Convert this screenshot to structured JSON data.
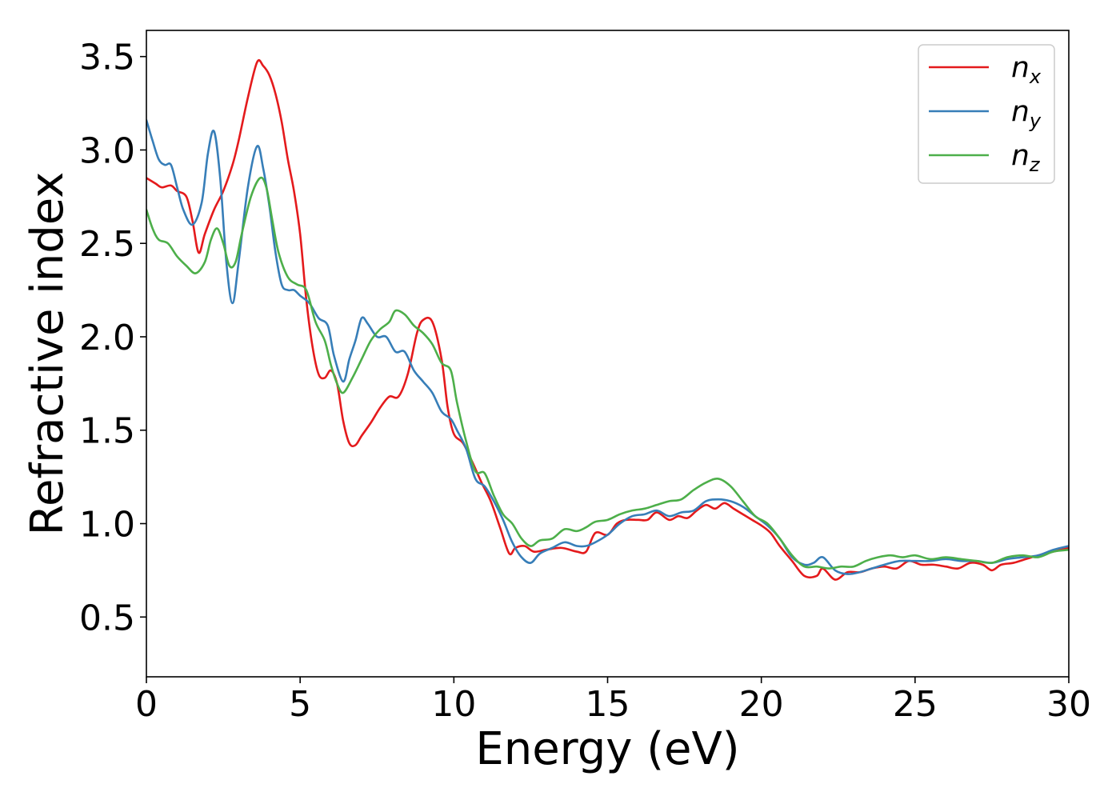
{
  "chart_data": {
    "type": "line",
    "title": "",
    "xlabel": "Energy (eV)",
    "ylabel": "Refractive index",
    "xlim": [
      0,
      30
    ],
    "ylim": [
      0.18,
      3.64
    ],
    "xticks": [
      0,
      5,
      10,
      15,
      20,
      25,
      30
    ],
    "xtick_labels": [
      "0",
      "5",
      "10",
      "15",
      "20",
      "25",
      "30"
    ],
    "yticks": [
      0.5,
      1.0,
      1.5,
      2.0,
      2.5,
      3.0,
      3.5
    ],
    "ytick_labels": [
      "0.5",
      "1.0",
      "1.5",
      "2.0",
      "2.5",
      "3.0",
      "3.5"
    ],
    "grid": false,
    "legend_position": "top-right",
    "series": [
      {
        "name": "n",
        "subscript": "x",
        "color": "#e41a1c",
        "points": [
          [
            0,
            2.85
          ],
          [
            0.3,
            2.82
          ],
          [
            0.5,
            2.8
          ],
          [
            0.8,
            2.81
          ],
          [
            1.0,
            2.78
          ],
          [
            1.3,
            2.75
          ],
          [
            1.5,
            2.62
          ],
          [
            1.7,
            2.45
          ],
          [
            1.9,
            2.55
          ],
          [
            2.2,
            2.68
          ],
          [
            2.5,
            2.78
          ],
          [
            2.8,
            2.92
          ],
          [
            3.0,
            3.05
          ],
          [
            3.3,
            3.28
          ],
          [
            3.6,
            3.47
          ],
          [
            3.8,
            3.45
          ],
          [
            4.0,
            3.4
          ],
          [
            4.2,
            3.3
          ],
          [
            4.4,
            3.15
          ],
          [
            4.6,
            2.95
          ],
          [
            4.8,
            2.78
          ],
          [
            5.0,
            2.55
          ],
          [
            5.2,
            2.2
          ],
          [
            5.4,
            1.95
          ],
          [
            5.6,
            1.8
          ],
          [
            5.8,
            1.78
          ],
          [
            6.0,
            1.82
          ],
          [
            6.2,
            1.75
          ],
          [
            6.4,
            1.55
          ],
          [
            6.6,
            1.43
          ],
          [
            6.8,
            1.42
          ],
          [
            7.0,
            1.47
          ],
          [
            7.3,
            1.54
          ],
          [
            7.6,
            1.62
          ],
          [
            7.9,
            1.68
          ],
          [
            8.2,
            1.68
          ],
          [
            8.5,
            1.8
          ],
          [
            8.8,
            2.02
          ],
          [
            9.0,
            2.09
          ],
          [
            9.3,
            2.08
          ],
          [
            9.6,
            1.88
          ],
          [
            9.8,
            1.62
          ],
          [
            10.0,
            1.48
          ],
          [
            10.3,
            1.43
          ],
          [
            10.6,
            1.33
          ],
          [
            10.9,
            1.22
          ],
          [
            11.2,
            1.12
          ],
          [
            11.5,
            0.98
          ],
          [
            11.8,
            0.84
          ],
          [
            12.0,
            0.87
          ],
          [
            12.3,
            0.88
          ],
          [
            12.6,
            0.85
          ],
          [
            13.0,
            0.86
          ],
          [
            13.5,
            0.87
          ],
          [
            14.0,
            0.85
          ],
          [
            14.3,
            0.85
          ],
          [
            14.6,
            0.95
          ],
          [
            15.0,
            0.94
          ],
          [
            15.3,
            1.0
          ],
          [
            15.6,
            1.02
          ],
          [
            16.0,
            1.02
          ],
          [
            16.3,
            1.02
          ],
          [
            16.6,
            1.06
          ],
          [
            17.0,
            1.02
          ],
          [
            17.3,
            1.04
          ],
          [
            17.6,
            1.03
          ],
          [
            17.9,
            1.07
          ],
          [
            18.2,
            1.1
          ],
          [
            18.5,
            1.08
          ],
          [
            18.8,
            1.11
          ],
          [
            19.1,
            1.08
          ],
          [
            19.4,
            1.05
          ],
          [
            19.7,
            1.02
          ],
          [
            20.0,
            0.99
          ],
          [
            20.3,
            0.95
          ],
          [
            20.6,
            0.88
          ],
          [
            21.0,
            0.8
          ],
          [
            21.4,
            0.72
          ],
          [
            21.8,
            0.72
          ],
          [
            22.0,
            0.76
          ],
          [
            22.4,
            0.7
          ],
          [
            22.8,
            0.74
          ],
          [
            23.2,
            0.74
          ],
          [
            23.6,
            0.76
          ],
          [
            24.0,
            0.77
          ],
          [
            24.4,
            0.76
          ],
          [
            24.8,
            0.8
          ],
          [
            25.2,
            0.78
          ],
          [
            25.6,
            0.78
          ],
          [
            26.0,
            0.77
          ],
          [
            26.4,
            0.76
          ],
          [
            26.8,
            0.79
          ],
          [
            27.2,
            0.78
          ],
          [
            27.5,
            0.75
          ],
          [
            27.8,
            0.78
          ],
          [
            28.2,
            0.79
          ],
          [
            28.6,
            0.81
          ],
          [
            29.0,
            0.83
          ],
          [
            29.5,
            0.85
          ],
          [
            30.0,
            0.87
          ]
        ]
      },
      {
        "name": "n",
        "subscript": "y",
        "color": "#377eb8",
        "points": [
          [
            0,
            3.16
          ],
          [
            0.2,
            3.05
          ],
          [
            0.4,
            2.95
          ],
          [
            0.6,
            2.92
          ],
          [
            0.8,
            2.92
          ],
          [
            1.0,
            2.8
          ],
          [
            1.2,
            2.68
          ],
          [
            1.5,
            2.6
          ],
          [
            1.8,
            2.72
          ],
          [
            2.0,
            2.98
          ],
          [
            2.2,
            3.1
          ],
          [
            2.4,
            2.85
          ],
          [
            2.6,
            2.4
          ],
          [
            2.8,
            2.18
          ],
          [
            3.0,
            2.4
          ],
          [
            3.3,
            2.8
          ],
          [
            3.6,
            3.02
          ],
          [
            3.8,
            2.9
          ],
          [
            4.0,
            2.7
          ],
          [
            4.2,
            2.45
          ],
          [
            4.4,
            2.28
          ],
          [
            4.6,
            2.25
          ],
          [
            4.8,
            2.25
          ],
          [
            5.0,
            2.22
          ],
          [
            5.3,
            2.18
          ],
          [
            5.6,
            2.1
          ],
          [
            5.9,
            2.06
          ],
          [
            6.1,
            1.9
          ],
          [
            6.4,
            1.76
          ],
          [
            6.6,
            1.88
          ],
          [
            6.8,
            1.98
          ],
          [
            7.0,
            2.1
          ],
          [
            7.2,
            2.07
          ],
          [
            7.5,
            2.0
          ],
          [
            7.8,
            2.0
          ],
          [
            8.1,
            1.92
          ],
          [
            8.4,
            1.92
          ],
          [
            8.7,
            1.82
          ],
          [
            9.0,
            1.76
          ],
          [
            9.3,
            1.7
          ],
          [
            9.6,
            1.6
          ],
          [
            9.9,
            1.56
          ],
          [
            10.1,
            1.5
          ],
          [
            10.4,
            1.4
          ],
          [
            10.7,
            1.24
          ],
          [
            11.0,
            1.2
          ],
          [
            11.3,
            1.12
          ],
          [
            11.6,
            1.02
          ],
          [
            11.9,
            0.9
          ],
          [
            12.2,
            0.82
          ],
          [
            12.5,
            0.79
          ],
          [
            12.8,
            0.84
          ],
          [
            13.2,
            0.87
          ],
          [
            13.6,
            0.9
          ],
          [
            14.0,
            0.88
          ],
          [
            14.3,
            0.88
          ],
          [
            14.6,
            0.9
          ],
          [
            15.0,
            0.94
          ],
          [
            15.4,
            1.0
          ],
          [
            15.8,
            1.04
          ],
          [
            16.2,
            1.05
          ],
          [
            16.6,
            1.07
          ],
          [
            17.0,
            1.04
          ],
          [
            17.4,
            1.06
          ],
          [
            17.8,
            1.07
          ],
          [
            18.2,
            1.12
          ],
          [
            18.6,
            1.13
          ],
          [
            19.0,
            1.12
          ],
          [
            19.4,
            1.09
          ],
          [
            19.8,
            1.04
          ],
          [
            20.2,
            0.99
          ],
          [
            20.6,
            0.92
          ],
          [
            21.0,
            0.82
          ],
          [
            21.4,
            0.78
          ],
          [
            21.7,
            0.79
          ],
          [
            22.0,
            0.82
          ],
          [
            22.4,
            0.75
          ],
          [
            22.8,
            0.73
          ],
          [
            23.2,
            0.74
          ],
          [
            23.6,
            0.76
          ],
          [
            24.0,
            0.78
          ],
          [
            24.5,
            0.8
          ],
          [
            25.0,
            0.8
          ],
          [
            25.5,
            0.8
          ],
          [
            26.0,
            0.81
          ],
          [
            26.5,
            0.8
          ],
          [
            27.0,
            0.8
          ],
          [
            27.5,
            0.79
          ],
          [
            28.0,
            0.81
          ],
          [
            28.5,
            0.82
          ],
          [
            29.0,
            0.83
          ],
          [
            29.5,
            0.86
          ],
          [
            30.0,
            0.88
          ]
        ]
      },
      {
        "name": "n",
        "subscript": "z",
        "color": "#4daf4a",
        "points": [
          [
            0,
            2.68
          ],
          [
            0.2,
            2.58
          ],
          [
            0.4,
            2.52
          ],
          [
            0.7,
            2.5
          ],
          [
            1.0,
            2.43
          ],
          [
            1.3,
            2.38
          ],
          [
            1.6,
            2.34
          ],
          [
            1.9,
            2.4
          ],
          [
            2.1,
            2.52
          ],
          [
            2.3,
            2.58
          ],
          [
            2.5,
            2.5
          ],
          [
            2.7,
            2.38
          ],
          [
            2.9,
            2.4
          ],
          [
            3.1,
            2.55
          ],
          [
            3.4,
            2.75
          ],
          [
            3.7,
            2.85
          ],
          [
            3.9,
            2.8
          ],
          [
            4.1,
            2.62
          ],
          [
            4.3,
            2.45
          ],
          [
            4.6,
            2.32
          ],
          [
            4.9,
            2.28
          ],
          [
            5.2,
            2.25
          ],
          [
            5.5,
            2.08
          ],
          [
            5.8,
            1.98
          ],
          [
            6.0,
            1.85
          ],
          [
            6.2,
            1.75
          ],
          [
            6.4,
            1.7
          ],
          [
            6.7,
            1.78
          ],
          [
            7.0,
            1.88
          ],
          [
            7.3,
            1.98
          ],
          [
            7.6,
            2.04
          ],
          [
            7.9,
            2.08
          ],
          [
            8.1,
            2.14
          ],
          [
            8.4,
            2.12
          ],
          [
            8.7,
            2.06
          ],
          [
            9.0,
            2.02
          ],
          [
            9.3,
            1.96
          ],
          [
            9.6,
            1.86
          ],
          [
            9.9,
            1.82
          ],
          [
            10.1,
            1.65
          ],
          [
            10.4,
            1.44
          ],
          [
            10.7,
            1.28
          ],
          [
            11.0,
            1.27
          ],
          [
            11.3,
            1.15
          ],
          [
            11.6,
            1.05
          ],
          [
            11.9,
            1.0
          ],
          [
            12.2,
            0.92
          ],
          [
            12.5,
            0.88
          ],
          [
            12.8,
            0.91
          ],
          [
            13.2,
            0.92
          ],
          [
            13.6,
            0.97
          ],
          [
            14.0,
            0.96
          ],
          [
            14.3,
            0.98
          ],
          [
            14.6,
            1.01
          ],
          [
            15.0,
            1.02
          ],
          [
            15.4,
            1.05
          ],
          [
            15.8,
            1.07
          ],
          [
            16.2,
            1.08
          ],
          [
            16.6,
            1.1
          ],
          [
            17.0,
            1.12
          ],
          [
            17.4,
            1.13
          ],
          [
            17.8,
            1.18
          ],
          [
            18.2,
            1.22
          ],
          [
            18.6,
            1.24
          ],
          [
            19.0,
            1.2
          ],
          [
            19.4,
            1.12
          ],
          [
            19.8,
            1.04
          ],
          [
            20.2,
            1.0
          ],
          [
            20.6,
            0.92
          ],
          [
            21.0,
            0.83
          ],
          [
            21.4,
            0.77
          ],
          [
            21.8,
            0.77
          ],
          [
            22.2,
            0.76
          ],
          [
            22.6,
            0.77
          ],
          [
            23.0,
            0.77
          ],
          [
            23.4,
            0.8
          ],
          [
            23.8,
            0.82
          ],
          [
            24.2,
            0.83
          ],
          [
            24.6,
            0.82
          ],
          [
            25.0,
            0.83
          ],
          [
            25.5,
            0.81
          ],
          [
            26.0,
            0.82
          ],
          [
            26.5,
            0.81
          ],
          [
            27.0,
            0.8
          ],
          [
            27.5,
            0.79
          ],
          [
            28.0,
            0.82
          ],
          [
            28.5,
            0.83
          ],
          [
            29.0,
            0.82
          ],
          [
            29.5,
            0.85
          ],
          [
            30.0,
            0.86
          ]
        ]
      }
    ]
  }
}
